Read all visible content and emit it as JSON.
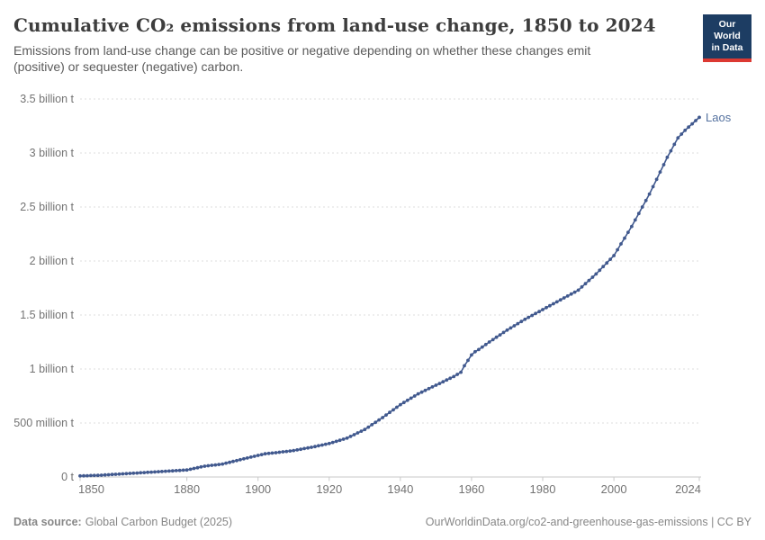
{
  "header": {
    "title": "Cumulative CO₂ emissions from land-use change, 1850 to 2024",
    "subtitle": "Emissions from land-use change can be positive or negative depending on whether these changes emit (positive) or sequester (negative) carbon."
  },
  "logo": {
    "line1": "Our World",
    "line2": "in Data"
  },
  "footer": {
    "source_label": "Data source:",
    "source_value": "Global Carbon Budget (2025)",
    "credit": "OurWorldinData.org/co2-and-greenhouse-gas-emissions | CC BY"
  },
  "colors": {
    "line": "#41598e",
    "end_label": "#54719f",
    "grid": "#dddddd",
    "axis": "#c9c9c9",
    "tick_label": "#737373",
    "title": "#3d3d3d",
    "subtitle": "#5b5b5b",
    "footer_text": "#878787",
    "logo_bg": "#1d3d63",
    "logo_bar": "#dc3932"
  },
  "chart_data": {
    "type": "line",
    "title": "Cumulative CO₂ emissions from land-use change, 1850 to 2024",
    "entity": "Laos",
    "unit": "tonnes of CO₂",
    "value_unit_of_points": "billion t",
    "xlim": [
      1850,
      2024
    ],
    "ylim": [
      0,
      3.5
    ],
    "grid": "horizontal-dashed",
    "legend": "end-of-line-label",
    "marker": "dot-per-year",
    "x_ticks": [
      1850,
      1880,
      1900,
      1920,
      1940,
      1960,
      1980,
      2000,
      2024
    ],
    "y_ticks": [
      {
        "value": 0,
        "label": "0 t"
      },
      {
        "value": 0.5,
        "label": "500 million t"
      },
      {
        "value": 1,
        "label": "1 billion t"
      },
      {
        "value": 1.5,
        "label": "1.5 billion t"
      },
      {
        "value": 2,
        "label": "2 billion t"
      },
      {
        "value": 2.5,
        "label": "2.5 billion t"
      },
      {
        "value": 3,
        "label": "3 billion t"
      },
      {
        "value": 3.5,
        "label": "3.5 billion t"
      }
    ],
    "series": [
      {
        "name": "Laos",
        "points": [
          [
            1850,
            0.01
          ],
          [
            1855,
            0.015
          ],
          [
            1860,
            0.025
          ],
          [
            1865,
            0.035
          ],
          [
            1870,
            0.045
          ],
          [
            1875,
            0.055
          ],
          [
            1880,
            0.065
          ],
          [
            1885,
            0.1
          ],
          [
            1890,
            0.12
          ],
          [
            1895,
            0.16
          ],
          [
            1900,
            0.2
          ],
          [
            1902,
            0.215
          ],
          [
            1905,
            0.225
          ],
          [
            1910,
            0.245
          ],
          [
            1915,
            0.275
          ],
          [
            1920,
            0.31
          ],
          [
            1925,
            0.36
          ],
          [
            1930,
            0.44
          ],
          [
            1935,
            0.55
          ],
          [
            1940,
            0.67
          ],
          [
            1945,
            0.77
          ],
          [
            1950,
            0.85
          ],
          [
            1955,
            0.93
          ],
          [
            1957,
            0.97
          ],
          [
            1958,
            1.03
          ],
          [
            1959,
            1.08
          ],
          [
            1960,
            1.13
          ],
          [
            1961,
            1.16
          ],
          [
            1962,
            1.18
          ],
          [
            1965,
            1.25
          ],
          [
            1970,
            1.36
          ],
          [
            1975,
            1.46
          ],
          [
            1980,
            1.55
          ],
          [
            1985,
            1.64
          ],
          [
            1990,
            1.73
          ],
          [
            1995,
            1.88
          ],
          [
            2000,
            2.05
          ],
          [
            2005,
            2.32
          ],
          [
            2008,
            2.5
          ],
          [
            2010,
            2.62
          ],
          [
            2015,
            2.96
          ],
          [
            2018,
            3.14
          ],
          [
            2020,
            3.21
          ],
          [
            2022,
            3.27
          ],
          [
            2024,
            3.33
          ]
        ]
      }
    ]
  }
}
